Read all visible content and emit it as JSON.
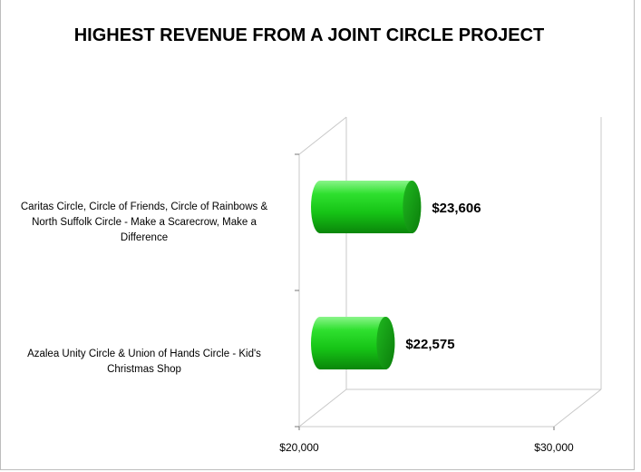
{
  "chart_data": {
    "type": "bar",
    "orientation": "horizontal",
    "style": "3d-cylinder",
    "title": "HIGHEST REVENUE FROM A JOINT CIRCLE PROJECT",
    "categories": [
      "Caritas Circle, Circle of Friends, Circle of Rainbows & North Suffolk Circle - Make a Scarecrow, Make a Difference",
      "Azalea Unity Circle & Union of Hands Circle - Kid's Christmas Shop"
    ],
    "values": [
      23606,
      22575
    ],
    "value_labels": [
      "$23,606",
      "$22,575"
    ],
    "x_ticks": [
      "$20,000",
      "$30,000"
    ],
    "xlim": [
      20000,
      30000
    ],
    "bar_color": "#22c322",
    "grid": false,
    "legend": "none"
  }
}
